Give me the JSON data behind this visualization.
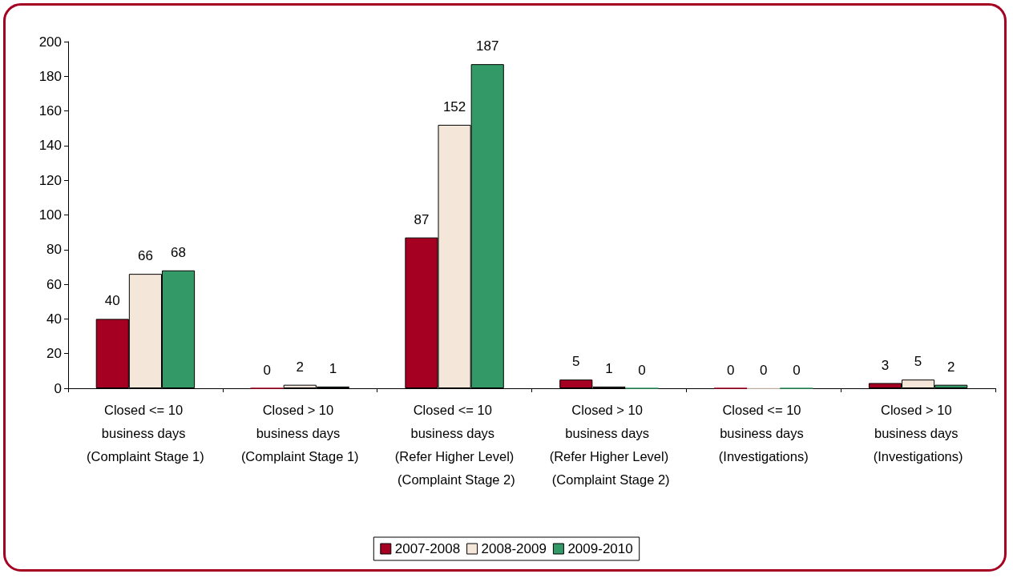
{
  "chart_data": {
    "type": "bar",
    "categories": [
      "Closed <= 10 business days (Complaint Stage 1)",
      "Closed > 10 business days (Complaint Stage 1)",
      "Closed <= 10 business days (Refer Higher Level) (Complaint Stage 2)",
      "Closed > 10 business days (Refer Higher Level) (Complaint Stage 2)",
      "Closed <= 10 business days (Investigations)",
      "Closed > 10 business days (Investigations)"
    ],
    "series": [
      {
        "name": "2007-2008",
        "color": "#a50021",
        "values": [
          40,
          0,
          87,
          5,
          0,
          3
        ]
      },
      {
        "name": "2008-2009",
        "color": "#f5e6da",
        "values": [
          66,
          2,
          152,
          1,
          0,
          5
        ]
      },
      {
        "name": "2009-2010",
        "color": "#339966",
        "values": [
          68,
          1,
          187,
          0,
          0,
          2
        ]
      }
    ],
    "ylim": [
      0,
      200
    ],
    "yticks": [
      0,
      20,
      40,
      60,
      80,
      100,
      120,
      140,
      160,
      180,
      200
    ],
    "grid": false,
    "legend": "bottom",
    "data_labels": true
  }
}
